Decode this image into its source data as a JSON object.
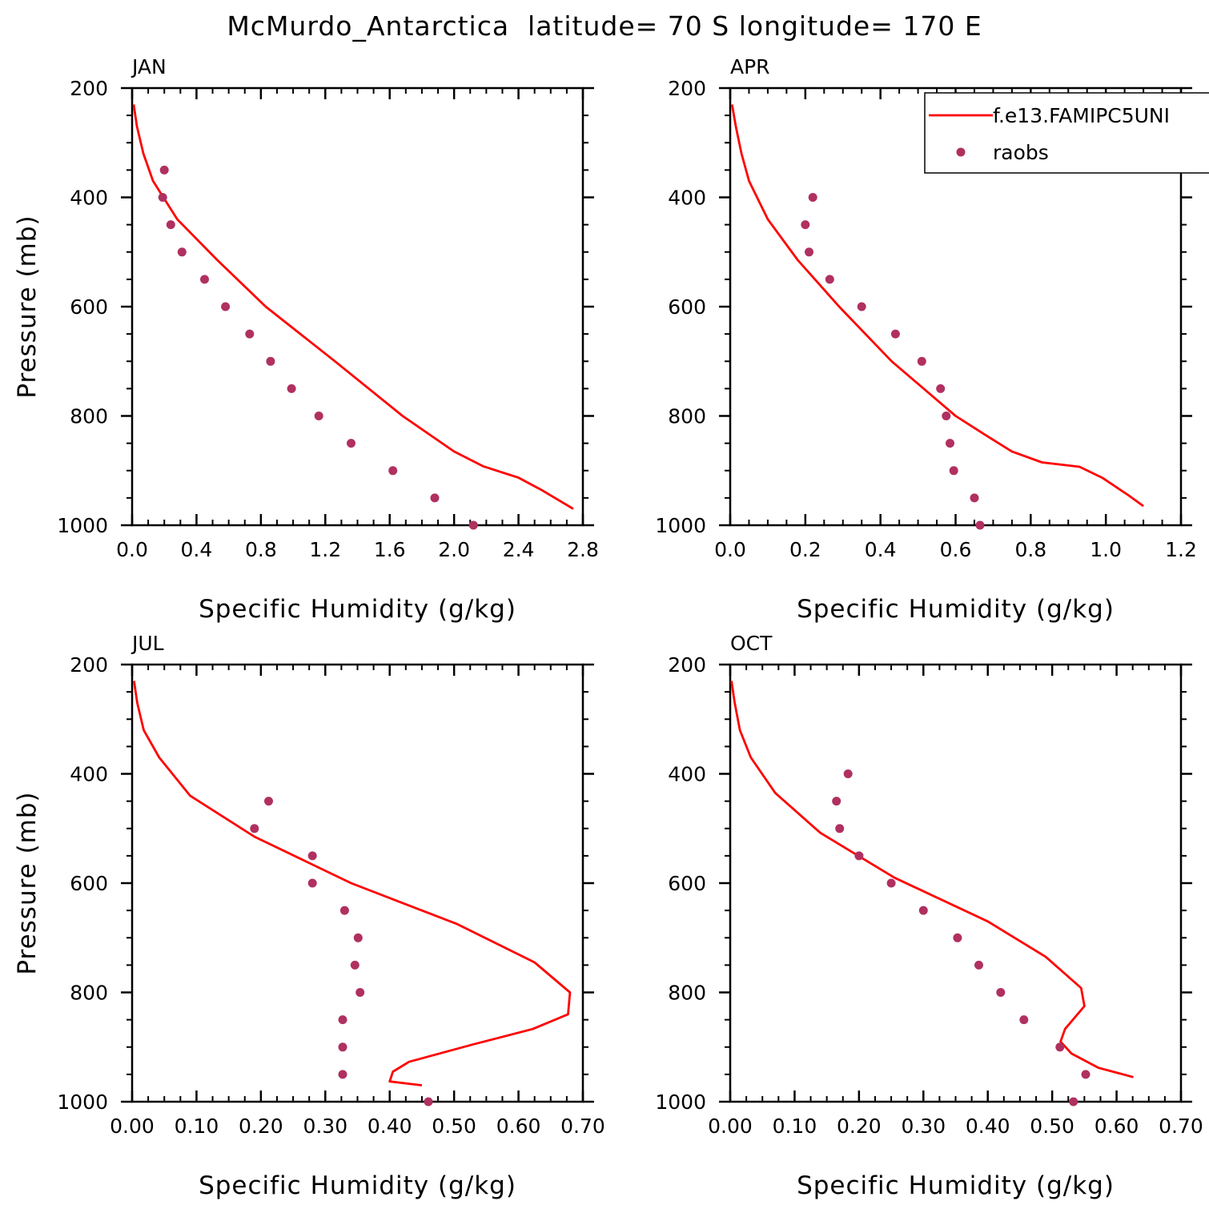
{
  "title": "McMurdo_Antarctica  latitude= 70 S longitude= 170 E",
  "colors": {
    "model": "#ff0000",
    "obs": "#b03060",
    "axis": "#000000"
  },
  "legend": {
    "placement": "top-right of APR panel",
    "model_label": "f.e13.FAMIPC5UNI",
    "obs_label": "raobs"
  },
  "chart_data": [
    {
      "type": "line",
      "panel_label": "JAN",
      "xlabel": "Specific Humidity (g/kg)",
      "ylabel": "Pressure (mb)",
      "xlim": [
        0,
        2.8
      ],
      "ylim": [
        1000,
        200
      ],
      "xticks": [
        0,
        0.4,
        0.8,
        1.2,
        1.6,
        2.0,
        2.4,
        2.8
      ],
      "xtick_labels": [
        "0.0",
        "0.4",
        "0.8",
        "1.2",
        "1.6",
        "2.0",
        "2.4",
        "2.8"
      ],
      "yticks": [
        200,
        400,
        600,
        800,
        1000
      ],
      "ytick_labels": [
        "200",
        "400",
        "600",
        "800",
        "1000"
      ],
      "series": [
        {
          "name": "f.e13.FAMIPC5UNI",
          "kind": "line",
          "q": [
            0.01,
            0.03,
            0.07,
            0.13,
            0.28,
            0.53,
            0.83,
            1.26,
            1.68,
            2.0,
            2.18,
            2.4,
            2.54,
            2.74
          ],
          "p": [
            230,
            270,
            320,
            370,
            440,
            515,
            600,
            700,
            800,
            865,
            892,
            913,
            935,
            970
          ]
        },
        {
          "name": "raobs",
          "kind": "scatter",
          "q": [
            0.2,
            0.19,
            0.24,
            0.31,
            0.45,
            0.58,
            0.73,
            0.86,
            0.99,
            1.16,
            1.36,
            1.62,
            1.88,
            2.12
          ],
          "p": [
            350,
            400,
            450,
            500,
            550,
            600,
            650,
            700,
            750,
            800,
            850,
            900,
            950,
            1000
          ]
        }
      ]
    },
    {
      "type": "line",
      "panel_label": "APR",
      "xlabel": "Specific Humidity (g/kg)",
      "ylabel": "",
      "xlim": [
        0,
        1.2
      ],
      "ylim": [
        1000,
        200
      ],
      "xticks": [
        0,
        0.2,
        0.4,
        0.6,
        0.8,
        1.0,
        1.2
      ],
      "xtick_labels": [
        "0.0",
        "0.2",
        "0.4",
        "0.6",
        "0.8",
        "1.0",
        "1.2"
      ],
      "yticks": [
        200,
        400,
        600,
        800,
        1000
      ],
      "ytick_labels": [
        "200",
        "400",
        "600",
        "800",
        "1000"
      ],
      "series": [
        {
          "name": "f.e13.FAMIPC5UNI",
          "kind": "line",
          "q": [
            0.005,
            0.015,
            0.03,
            0.05,
            0.1,
            0.18,
            0.29,
            0.43,
            0.6,
            0.68,
            0.75,
            0.83,
            0.93,
            0.99,
            1.06,
            1.1
          ],
          "p": [
            230,
            270,
            320,
            370,
            440,
            515,
            600,
            700,
            800,
            835,
            865,
            885,
            893,
            913,
            945,
            965
          ]
        },
        {
          "name": "raobs",
          "kind": "scatter",
          "q": [
            0.22,
            0.2,
            0.21,
            0.265,
            0.35,
            0.44,
            0.51,
            0.56,
            0.575,
            0.585,
            0.595,
            0.65,
            0.665
          ],
          "p": [
            400,
            450,
            500,
            550,
            600,
            650,
            700,
            750,
            800,
            850,
            900,
            950,
            1000
          ]
        }
      ]
    },
    {
      "type": "line",
      "panel_label": "JUL",
      "xlabel": "Specific Humidity (g/kg)",
      "ylabel": "Pressure (mb)",
      "xlim": [
        0,
        0.7
      ],
      "ylim": [
        1000,
        200
      ],
      "xticks": [
        0,
        0.1,
        0.2,
        0.3,
        0.4,
        0.5,
        0.6,
        0.7
      ],
      "xtick_labels": [
        "0.00",
        "0.10",
        "0.20",
        "0.30",
        "0.40",
        "0.50",
        "0.60",
        "0.70"
      ],
      "yticks": [
        200,
        400,
        600,
        800,
        1000
      ],
      "ytick_labels": [
        "200",
        "400",
        "600",
        "800",
        "1000"
      ],
      "series": [
        {
          "name": "f.e13.FAMIPC5UNI",
          "kind": "line",
          "q": [
            0.003,
            0.008,
            0.018,
            0.042,
            0.09,
            0.19,
            0.34,
            0.505,
            0.625,
            0.68,
            0.677,
            0.622,
            0.53,
            0.43,
            0.405,
            0.4,
            0.45
          ],
          "p": [
            230,
            270,
            320,
            370,
            440,
            515,
            600,
            675,
            745,
            800,
            840,
            867,
            895,
            927,
            945,
            963,
            970
          ]
        },
        {
          "name": "raobs",
          "kind": "scatter",
          "q": [
            0.212,
            0.19,
            0.28,
            0.28,
            0.33,
            0.351,
            0.346,
            0.354,
            0.327,
            0.327,
            0.327,
            0.46
          ],
          "p": [
            450,
            500,
            550,
            600,
            650,
            700,
            750,
            800,
            850,
            900,
            950,
            1000
          ]
        }
      ]
    },
    {
      "type": "line",
      "panel_label": "OCT",
      "xlabel": "Specific Humidity (g/kg)",
      "ylabel": "",
      "xlim": [
        0,
        0.7
      ],
      "ylim": [
        1000,
        200
      ],
      "xticks": [
        0,
        0.1,
        0.2,
        0.3,
        0.4,
        0.5,
        0.6,
        0.7
      ],
      "xtick_labels": [
        "0.00",
        "0.10",
        "0.20",
        "0.30",
        "0.40",
        "0.50",
        "0.60",
        "0.70"
      ],
      "yticks": [
        200,
        400,
        600,
        800,
        1000
      ],
      "ytick_labels": [
        "200",
        "400",
        "600",
        "800",
        "1000"
      ],
      "series": [
        {
          "name": "f.e13.FAMIPC5UNI",
          "kind": "line",
          "q": [
            0.002,
            0.007,
            0.015,
            0.032,
            0.07,
            0.14,
            0.255,
            0.4,
            0.49,
            0.545,
            0.55,
            0.52,
            0.513,
            0.53,
            0.572,
            0.626
          ],
          "p": [
            230,
            270,
            320,
            370,
            435,
            508,
            590,
            670,
            735,
            792,
            825,
            867,
            890,
            912,
            938,
            955
          ]
        },
        {
          "name": "raobs",
          "kind": "scatter",
          "q": [
            0.183,
            0.165,
            0.17,
            0.2,
            0.25,
            0.3,
            0.353,
            0.386,
            0.42,
            0.456,
            0.512,
            0.552,
            0.533
          ],
          "p": [
            400,
            450,
            500,
            550,
            600,
            650,
            700,
            750,
            800,
            850,
            900,
            950,
            1000
          ]
        }
      ]
    }
  ]
}
